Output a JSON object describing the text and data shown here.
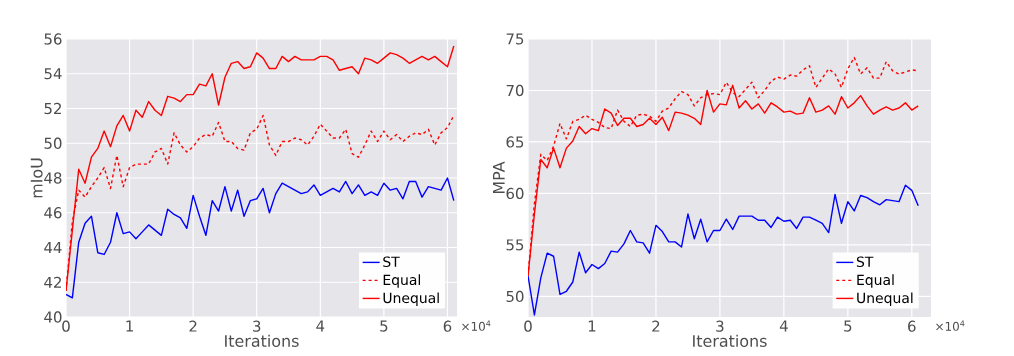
{
  "chart_data": [
    {
      "type": "line",
      "xlabel": "Iterations",
      "ylabel": "mIoU",
      "annotations": [
        "×10$^{4}$"
      ],
      "x": [
        0,
        0.1,
        0.2,
        0.3,
        0.4,
        0.5,
        0.6,
        0.7,
        0.8,
        0.9,
        1,
        1.1,
        1.2,
        1.3,
        1.4,
        1.5,
        1.6,
        1.7,
        1.8,
        1.9,
        2,
        2.1,
        2.2,
        2.3,
        2.4,
        2.5,
        2.6,
        2.7,
        2.8,
        2.9,
        3,
        3.1,
        3.2,
        3.3,
        3.4,
        3.5,
        3.6,
        3.7,
        3.8,
        3.9,
        4,
        4.1,
        4.2,
        4.3,
        4.4,
        4.5,
        4.6,
        4.7,
        4.8,
        4.9,
        5,
        5.1,
        5.2,
        5.3,
        5.4,
        5.5,
        5.6,
        5.7,
        5.8,
        5.9,
        6,
        6.1
      ],
      "xlim": [
        0,
        6.15
      ],
      "ylim": [
        40,
        56
      ],
      "xticks": [
        0,
        1,
        2,
        3,
        4,
        5,
        6
      ],
      "yticks": [
        40,
        42,
        44,
        46,
        48,
        50,
        52,
        54,
        56
      ],
      "grid": true,
      "legend": "bottom right",
      "series": [
        {
          "name": "ST",
          "color": "#0000ff",
          "line_style": "solid",
          "values": [
            41.3,
            41.1,
            44.3,
            45.4,
            45.8,
            43.7,
            43.6,
            44.3,
            46.0,
            44.8,
            44.9,
            44.5,
            44.9,
            45.3,
            45.0,
            44.7,
            46.2,
            45.9,
            45.7,
            45.1,
            47.0,
            45.8,
            44.7,
            46.7,
            46.1,
            47.5,
            46.1,
            47.3,
            45.8,
            46.7,
            46.8,
            47.4,
            46.0,
            47.1,
            47.7,
            47.5,
            47.3,
            47.1,
            47.2,
            47.6,
            47.0,
            47.2,
            47.4,
            47.2,
            47.8,
            47.1,
            47.6,
            47.0,
            47.2,
            47.0,
            47.7,
            47.3,
            47.4,
            46.8,
            47.8,
            47.8,
            46.9,
            47.5,
            47.4,
            47.3,
            48.0,
            46.7
          ]
        },
        {
          "name": "Equal",
          "color": "#ff0000",
          "line_style": "dashed",
          "values": [
            41.5,
            45.5,
            47.3,
            46.9,
            47.5,
            48.0,
            48.6,
            47.4,
            49.3,
            47.5,
            48.6,
            48.8,
            48.8,
            48.8,
            49.5,
            49.7,
            48.8,
            50.6,
            49.9,
            49.5,
            49.8,
            50.3,
            50.5,
            50.4,
            51.2,
            50.1,
            50.1,
            49.7,
            49.6,
            50.6,
            50.8,
            51.6,
            49.9,
            49.3,
            50.1,
            50.1,
            50.3,
            50.2,
            49.9,
            50.4,
            51.1,
            50.7,
            50.3,
            50.3,
            50.8,
            49.4,
            49.2,
            49.9,
            50.7,
            50.1,
            50.7,
            50.2,
            50.5,
            50.1,
            50.4,
            50.6,
            50.5,
            50.8,
            49.9,
            50.6,
            50.9,
            51.6
          ]
        },
        {
          "name": "Unequal",
          "color": "#ff0000",
          "line_style": "solid",
          "values": [
            41.5,
            45.0,
            48.5,
            47.7,
            49.2,
            49.7,
            50.7,
            49.8,
            51.0,
            51.6,
            50.7,
            51.9,
            51.5,
            52.4,
            51.9,
            51.6,
            52.7,
            52.6,
            52.4,
            52.8,
            52.8,
            53.4,
            53.3,
            54.0,
            52.2,
            53.8,
            54.6,
            54.7,
            54.3,
            54.4,
            55.2,
            54.9,
            54.3,
            54.3,
            55.0,
            54.7,
            55.0,
            54.8,
            54.8,
            54.8,
            55.0,
            55.0,
            54.8,
            54.2,
            54.3,
            54.4,
            54.0,
            54.9,
            54.8,
            54.6,
            54.9,
            55.2,
            55.1,
            54.9,
            54.6,
            54.8,
            55.0,
            54.8,
            55.0,
            54.7,
            54.4,
            55.6
          ]
        }
      ]
    },
    {
      "type": "line",
      "xlabel": "Iterations",
      "ylabel": "MPA",
      "annotations": [
        "×10$^{4}$"
      ],
      "x": [
        0,
        0.1,
        0.2,
        0.3,
        0.4,
        0.5,
        0.6,
        0.7,
        0.8,
        0.9,
        1,
        1.1,
        1.2,
        1.3,
        1.4,
        1.5,
        1.6,
        1.7,
        1.8,
        1.9,
        2,
        2.1,
        2.2,
        2.3,
        2.4,
        2.5,
        2.6,
        2.7,
        2.8,
        2.9,
        3,
        3.1,
        3.2,
        3.3,
        3.4,
        3.5,
        3.6,
        3.7,
        3.8,
        3.9,
        4,
        4.1,
        4.2,
        4.3,
        4.4,
        4.5,
        4.6,
        4.7,
        4.8,
        4.9,
        5,
        5.1,
        5.2,
        5.3,
        5.4,
        5.5,
        5.6,
        5.7,
        5.8,
        5.9,
        6,
        6.1
      ],
      "xlim": [
        0,
        6.3
      ],
      "ylim": [
        48,
        75
      ],
      "xticks": [
        0,
        1,
        2,
        3,
        4,
        5,
        6
      ],
      "yticks": [
        50,
        55,
        60,
        65,
        70,
        75
      ],
      "grid": true,
      "legend": "bottom right",
      "series": [
        {
          "name": "ST",
          "color": "#0000ff",
          "line_style": "solid",
          "values": [
            52.0,
            48.2,
            51.8,
            54.2,
            53.9,
            50.2,
            50.5,
            51.4,
            54.3,
            52.3,
            53.1,
            52.7,
            53.2,
            54.4,
            54.3,
            55.1,
            56.4,
            55.3,
            55.2,
            54.2,
            56.9,
            56.3,
            55.3,
            55.3,
            54.8,
            58.0,
            55.6,
            57.5,
            55.3,
            56.4,
            56.4,
            57.5,
            56.5,
            57.8,
            57.8,
            57.8,
            57.4,
            57.4,
            56.7,
            57.7,
            57.3,
            57.4,
            56.6,
            57.7,
            57.7,
            57.4,
            57.1,
            56.2,
            59.9,
            57.1,
            59.2,
            58.3,
            59.8,
            59.6,
            59.2,
            58.9,
            59.4,
            59.3,
            59.2,
            60.8,
            60.3,
            58.8
          ]
        },
        {
          "name": "Equal",
          "color": "#ff0000",
          "line_style": "dashed",
          "values": [
            52.0,
            59.0,
            63.8,
            63.2,
            64.6,
            66.8,
            65.3,
            67.0,
            67.2,
            67.6,
            67.2,
            66.9,
            66.4,
            66.3,
            68.1,
            67.0,
            66.5,
            67.6,
            67.7,
            67.5,
            67.0,
            68.0,
            68.3,
            69.2,
            69.9,
            69.6,
            68.5,
            69.3,
            69.6,
            69.7,
            69.6,
            70.8,
            69.8,
            69.4,
            70.1,
            70.8,
            69.3,
            70.0,
            70.9,
            71.3,
            71.1,
            71.5,
            71.4,
            72.0,
            72.4,
            70.3,
            71.2,
            72.1,
            71.6,
            70.3,
            72.1,
            73.2,
            71.6,
            72.2,
            71.2,
            71.2,
            72.8,
            71.9,
            71.6,
            71.8,
            72.0,
            71.9
          ]
        },
        {
          "name": "Unequal",
          "color": "#ff0000",
          "line_style": "solid",
          "values": [
            52.0,
            58.0,
            63.3,
            62.5,
            64.4,
            62.5,
            64.4,
            65.1,
            66.5,
            65.8,
            66.3,
            66.1,
            68.2,
            67.8,
            66.6,
            67.3,
            67.3,
            66.5,
            66.7,
            67.3,
            66.7,
            67.4,
            66.1,
            67.9,
            67.8,
            67.6,
            67.3,
            66.7,
            70.0,
            67.9,
            68.7,
            68.6,
            70.5,
            68.3,
            69.0,
            68.2,
            68.7,
            67.8,
            68.8,
            68.4,
            67.9,
            68.0,
            67.7,
            67.8,
            69.3,
            67.9,
            68.1,
            68.5,
            67.7,
            69.4,
            68.3,
            68.8,
            69.5,
            68.5,
            67.7,
            68.1,
            68.4,
            68.1,
            68.3,
            68.8,
            68.1,
            68.5
          ]
        }
      ]
    }
  ]
}
